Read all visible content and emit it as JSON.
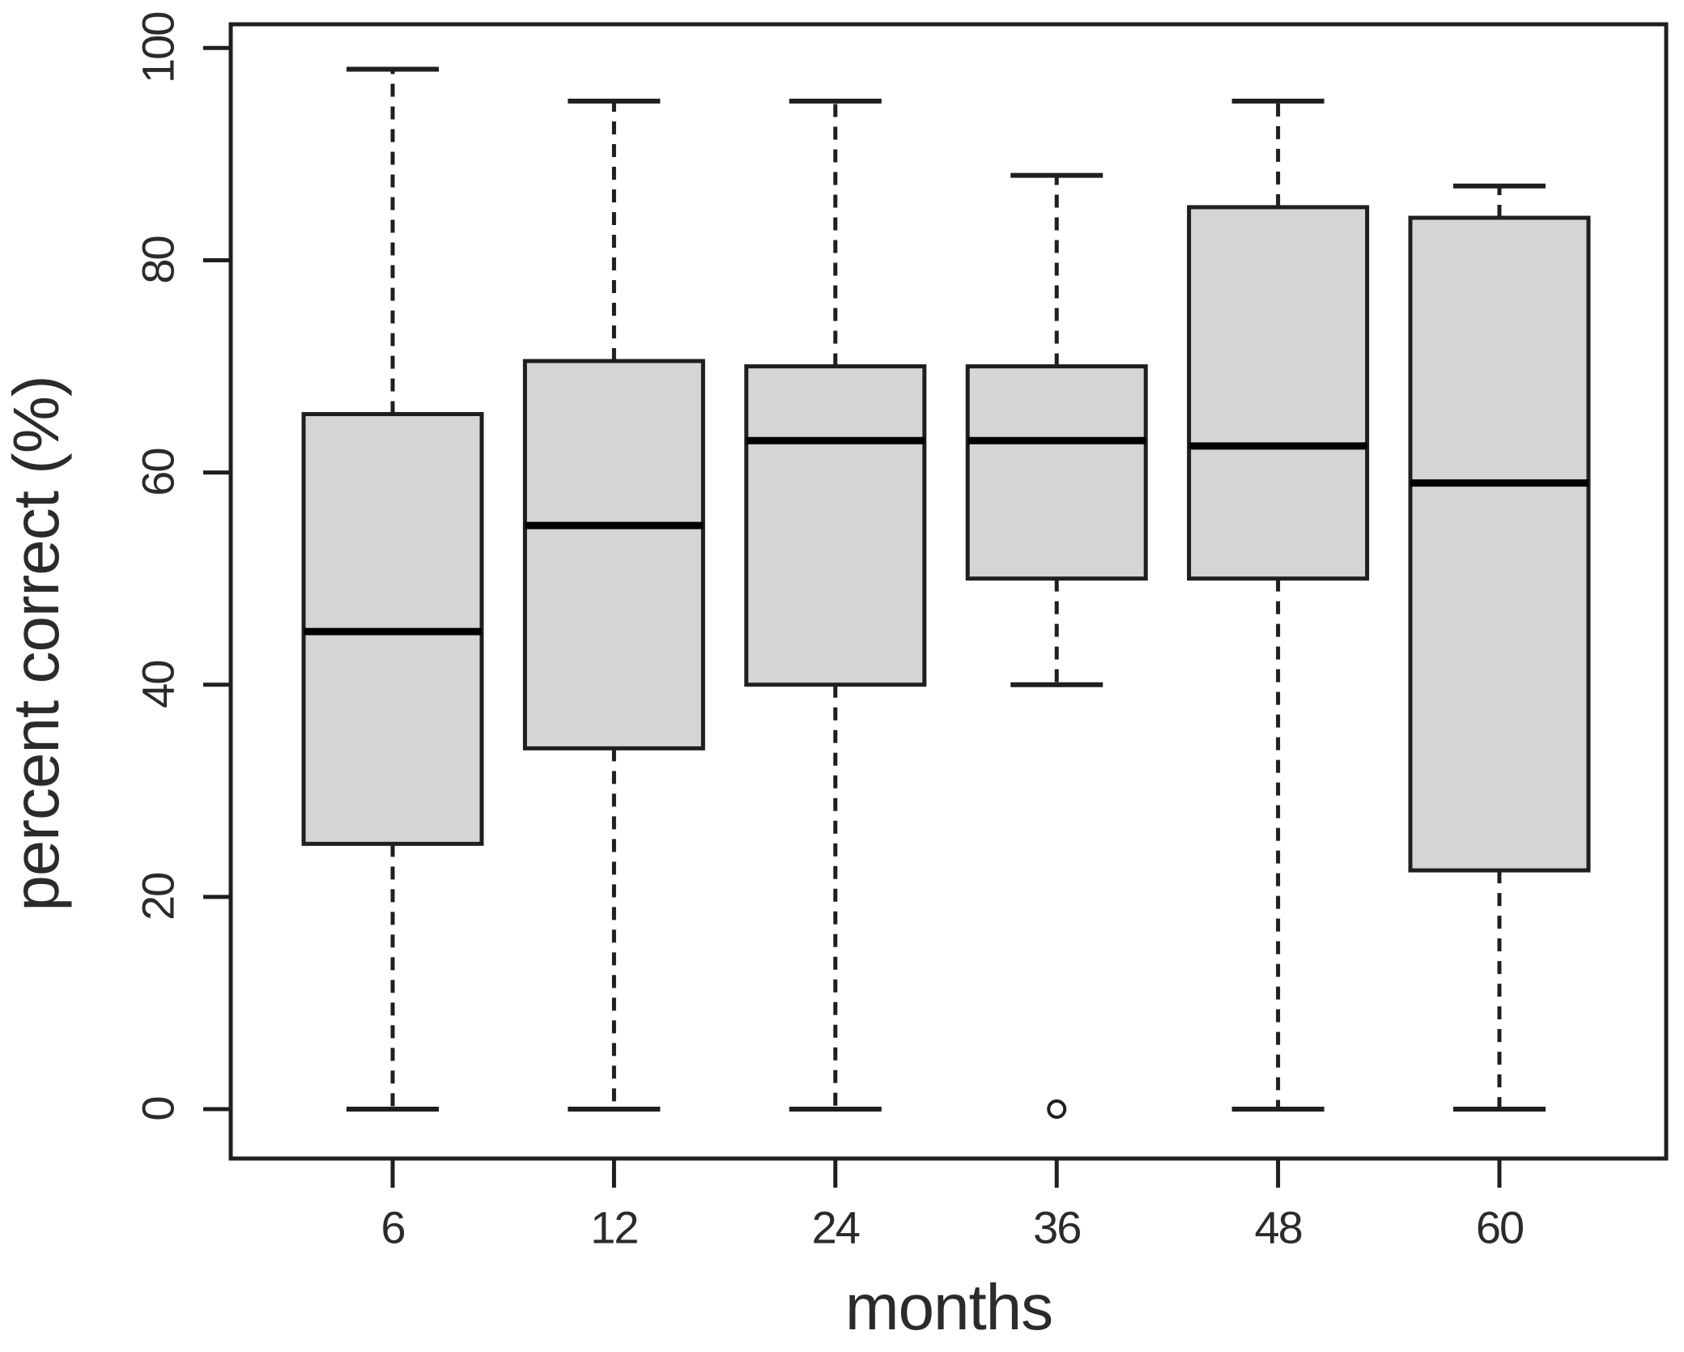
{
  "figure": {
    "background": "#ffffff",
    "text_color": "#2b2b2b"
  },
  "chart_data": {
    "type": "boxplot",
    "title": "",
    "xlabel": "months",
    "ylabel": "percent correct (%)",
    "ylim": [
      0,
      100
    ],
    "yticks": [
      "0",
      "20",
      "40",
      "60",
      "80",
      "100"
    ],
    "ytick_values": [
      0,
      20,
      40,
      60,
      80,
      100
    ],
    "categories": [
      "6",
      "12",
      "24",
      "36",
      "48",
      "60"
    ],
    "grid": "off",
    "legend": "none",
    "whisker_style": "dashed",
    "series": [
      {
        "category": "6",
        "whisker_low": 0,
        "q1": 25,
        "median": 45,
        "q3": 65.5,
        "whisker_high": 98,
        "outliers": []
      },
      {
        "category": "12",
        "whisker_low": 0,
        "q1": 34,
        "median": 55,
        "q3": 70.5,
        "whisker_high": 95,
        "outliers": []
      },
      {
        "category": "24",
        "whisker_low": 0,
        "q1": 40,
        "median": 63,
        "q3": 70,
        "whisker_high": 95,
        "outliers": []
      },
      {
        "category": "36",
        "whisker_low": 40,
        "q1": 50,
        "median": 63,
        "q3": 70,
        "whisker_high": 88,
        "outliers": [
          0
        ]
      },
      {
        "category": "48",
        "whisker_low": 0,
        "q1": 50,
        "median": 62.5,
        "q3": 85,
        "whisker_high": 95,
        "outliers": []
      },
      {
        "category": "60",
        "whisker_low": 0,
        "q1": 22.5,
        "median": 59,
        "q3": 84,
        "whisker_high": 87,
        "outliers": []
      }
    ],
    "colors": {
      "box_fill": "#d5d5d5",
      "box_stroke": "#1f1f1f",
      "median": "#000000",
      "whisker": "#1f1f1f",
      "frame": "#1f1f1f",
      "outlier_stroke": "#1f1f1f"
    }
  }
}
